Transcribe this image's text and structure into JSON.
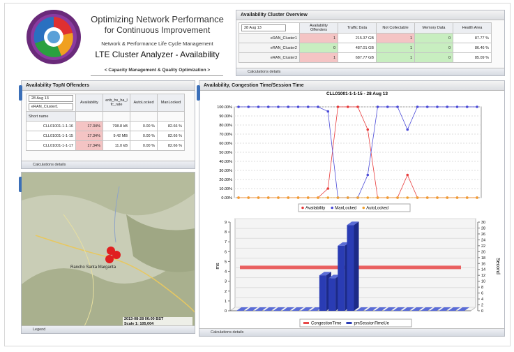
{
  "header": {
    "title": "Optimizing Network Performance",
    "subtitle": "for Continuous Improvement",
    "tagline": "Network & Performance Life Cycle Management",
    "app_name": "LTE Cluster Analyzer - Availability",
    "motto": "< Capacity Management & Quality Optimization >"
  },
  "cluster_overview": {
    "title": "Availability Cluster Overview",
    "date": "28 Aug 13",
    "columns": [
      "Availability Offenders",
      "Traffic Data",
      "Not Collectable",
      "Memory Data",
      "Health Area"
    ],
    "rows": [
      [
        "eRAN_Cluster1",
        "1",
        "215.37 GB",
        "1",
        "0",
        "87.77 %"
      ],
      [
        "eRAN_Cluster2",
        "0",
        "487.01 GB",
        "1",
        "0",
        "86.46 %"
      ],
      [
        "eRAN_Cluster3",
        "1",
        "687.77 GB",
        "1",
        "0",
        "85.09 %"
      ]
    ],
    "footer": "Calculations details"
  },
  "topn_offenders": {
    "title": "Availability TopN Offenders",
    "date": "28 Aug 13",
    "cluster": "eRAN_Cluster1",
    "columns": [
      "Short name",
      "Availability",
      "enb_hs_ha_lfc_rate",
      "AutoLocked",
      "ManLocked"
    ],
    "rows": [
      [
        "CLL01001-1-1-16",
        "17.34%",
        "798.8 kB",
        "0.00 %",
        "82.66 %"
      ],
      [
        "CLL01001-1-1-15",
        "17.34%",
        "9.42 MB",
        "0.00 %",
        "82.66 %"
      ],
      [
        "CLL01001-1-1-17",
        "17.34%",
        "11.0 kB",
        "0.00 %",
        "82.66 %"
      ]
    ],
    "footer": "Calculations details"
  },
  "map": {
    "place": "Rancho Santa Margarita",
    "timestamp": "2013-08-28 06:00 BST",
    "scale": "Scale 1: 105,004",
    "legend": "Legend"
  },
  "chart_panel": {
    "title": "Availability, Congestion Time/Session Time",
    "footer": "Calculations details"
  },
  "chart_data": [
    {
      "type": "line",
      "title": "CLL01001-1-1-15 - 28 Aug 13",
      "categories": [
        null,
        null,
        null,
        null,
        null,
        null,
        null,
        null,
        null,
        null,
        null,
        null,
        null,
        null,
        null,
        null,
        null,
        null,
        null,
        null,
        null,
        null,
        null,
        null,
        null
      ],
      "ylim": [
        0,
        100
      ],
      "yticks": [
        {
          "value": 0,
          "label": "0.00%"
        },
        {
          "value": 10,
          "label": "10.00%"
        },
        {
          "value": 20,
          "label": "20.00%"
        },
        {
          "value": 30,
          "label": "30.00%"
        },
        {
          "value": 40,
          "label": "40.00%"
        },
        {
          "value": 50,
          "label": "50.00%"
        },
        {
          "value": 60,
          "label": "60.00%"
        },
        {
          "value": 70,
          "label": "70.00%"
        },
        {
          "value": 80,
          "label": "80.00%"
        },
        {
          "value": 90,
          "label": "90.00%"
        },
        {
          "value": 100,
          "label": "100.00%"
        }
      ],
      "grid": true,
      "series": [
        {
          "name": "Availability",
          "color": "#e83a3a",
          "values": [
            0,
            0,
            0,
            0,
            0,
            0,
            0,
            0,
            0,
            10,
            100,
            100,
            100,
            75,
            0,
            0,
            0,
            25,
            0,
            0,
            0,
            0,
            0,
            0,
            0
          ]
        },
        {
          "name": "ManLocked",
          "color": "#4a4ad8",
          "values": [
            100,
            100,
            100,
            100,
            100,
            100,
            100,
            100,
            100,
            95,
            0,
            0,
            0,
            25,
            100,
            100,
            100,
            75,
            100,
            100,
            100,
            100,
            100,
            100,
            100
          ]
        },
        {
          "name": "AutoLocked",
          "color": "#f0a030",
          "values": [
            0,
            0,
            0,
            0,
            0,
            0,
            0,
            0,
            0,
            0,
            0,
            0,
            0,
            0,
            0,
            0,
            0,
            0,
            0,
            0,
            0,
            0,
            0,
            0,
            0
          ]
        }
      ]
    },
    {
      "type": "bar",
      "categories": [
        null,
        null,
        null,
        null,
        null,
        null,
        null,
        null,
        null,
        null,
        null,
        null,
        null,
        null,
        null,
        null,
        null,
        null,
        null,
        null,
        null,
        null,
        null,
        null,
        null
      ],
      "ylabel": "ms",
      "y2label": "Second",
      "ylim": [
        0,
        9
      ],
      "yticks": [
        0,
        1,
        2,
        3,
        4,
        5,
        6,
        7,
        8,
        9
      ],
      "y2lim": [
        0,
        30
      ],
      "y2ticks": [
        0,
        2,
        4,
        6,
        8,
        10,
        12,
        14,
        16,
        18,
        20,
        22,
        24,
        26,
        28,
        30
      ],
      "series": [
        {
          "name": "CongestionTime",
          "color": "#e84848",
          "values": [
            4.4,
            4.4,
            4.4,
            4.4,
            4.4,
            4.4,
            4.4,
            4.4,
            4.4,
            4.4,
            4.4,
            4.4,
            4.4,
            4.4,
            4.4,
            4.4,
            4.4,
            4.4,
            4.4,
            4.4,
            4.4,
            4.4,
            4.4,
            4.4,
            4.4
          ]
        },
        {
          "name": "pmSessionTimeUe",
          "color": "#2a3cb4",
          "axis": "y2",
          "values": [
            0,
            0,
            0,
            0,
            0,
            0,
            0,
            0,
            0,
            12,
            11,
            22,
            29,
            0,
            0,
            0,
            0,
            0,
            0,
            0,
            0,
            0,
            0,
            0,
            0
          ]
        }
      ]
    }
  ]
}
